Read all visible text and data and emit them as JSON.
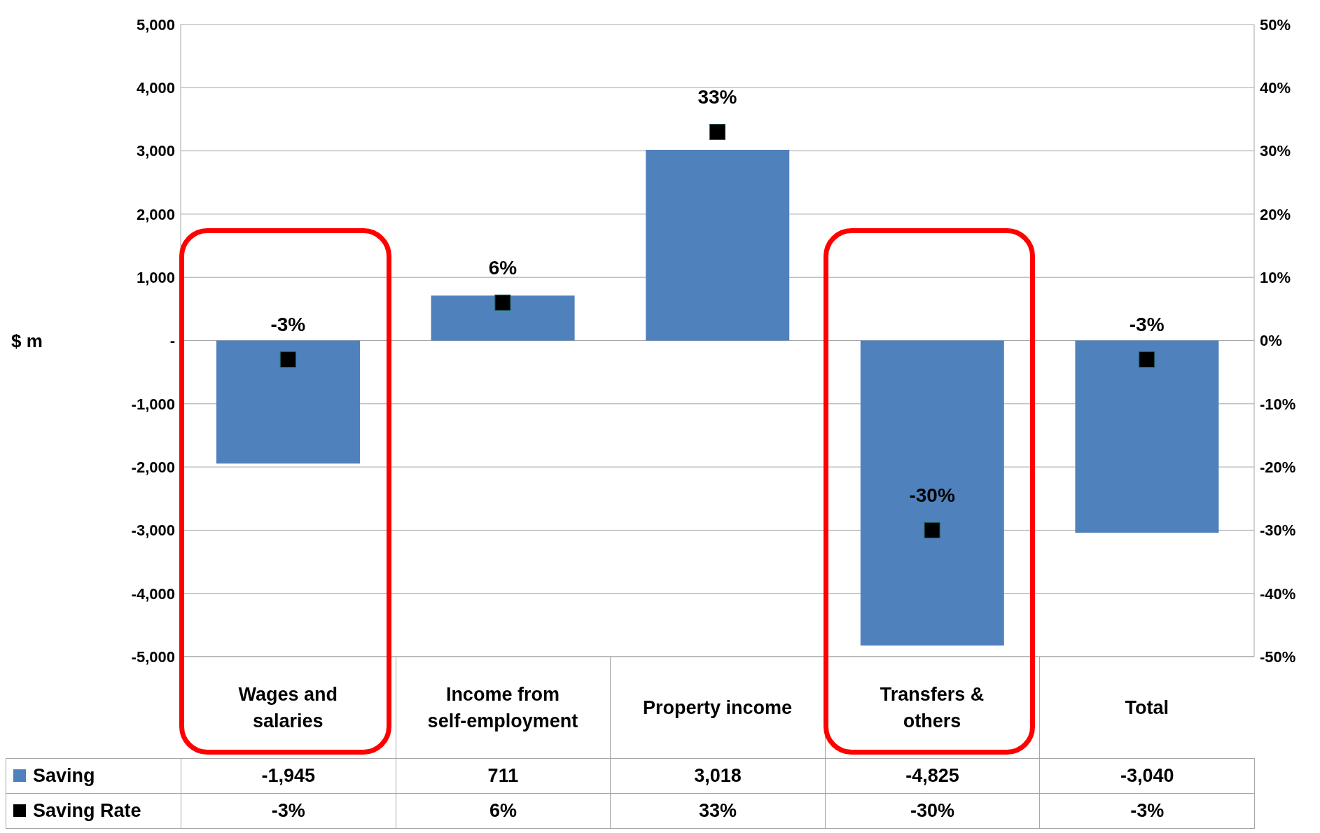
{
  "chart_data": {
    "type": "bar",
    "categories": [
      "Wages and salaries",
      "Income from self-employment",
      "Property income",
      "Transfers & others",
      "Total"
    ],
    "ylabel": "$ m",
    "ylim": [
      -5000,
      5000
    ],
    "yticks": [
      {
        "value": -5000,
        "label": "-5,000"
      },
      {
        "value": -4000,
        "label": "-4,000"
      },
      {
        "value": -3000,
        "label": "-3,000"
      },
      {
        "value": -2000,
        "label": "-2,000"
      },
      {
        "value": -1000,
        "label": "-1,000"
      },
      {
        "value": 0,
        "label": "-"
      },
      {
        "value": 1000,
        "label": "1,000"
      },
      {
        "value": 2000,
        "label": "2,000"
      },
      {
        "value": 3000,
        "label": "3,000"
      },
      {
        "value": 4000,
        "label": "4,000"
      },
      {
        "value": 5000,
        "label": "5,000"
      }
    ],
    "y2lim": [
      -50,
      50
    ],
    "y2ticks": [
      {
        "value": -50,
        "label": "-50%"
      },
      {
        "value": -40,
        "label": "-40%"
      },
      {
        "value": -30,
        "label": "-30%"
      },
      {
        "value": -20,
        "label": "-20%"
      },
      {
        "value": -10,
        "label": "-10%"
      },
      {
        "value": 0,
        "label": "0%"
      },
      {
        "value": 10,
        "label": "10%"
      },
      {
        "value": 20,
        "label": "20%"
      },
      {
        "value": 30,
        "label": "30%"
      },
      {
        "value": 40,
        "label": "40%"
      },
      {
        "value": 50,
        "label": "50%"
      }
    ],
    "grid": "y",
    "legend": "bottom left",
    "series": [
      {
        "name": "Saving",
        "color": "#4f81bd",
        "values": [
          -1945,
          711,
          3018,
          -4825,
          -3040
        ],
        "value_labels": [
          "-1,945",
          "711",
          "3,018",
          "-4,825",
          "-3,040"
        ]
      },
      {
        "name": "Saving Rate",
        "type": "scatter",
        "axis": "y2",
        "marker": "square",
        "color": "#000000",
        "values": [
          -3,
          6,
          33,
          -30,
          -3
        ],
        "value_labels": [
          "-3%",
          "6%",
          "33%",
          "-30%",
          "-3%"
        ]
      }
    ]
  }
}
